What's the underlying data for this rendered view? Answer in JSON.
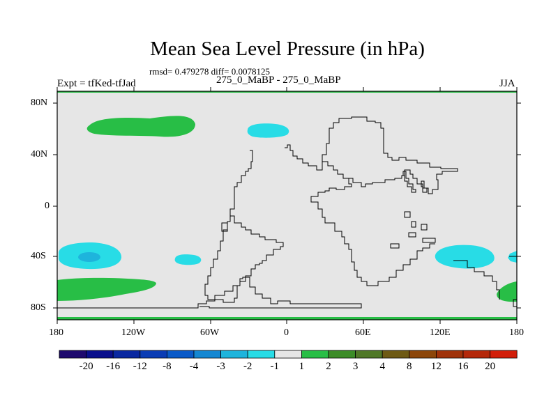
{
  "title": "Mean Sea Level Pressure (in hPa)",
  "stats": "rmsd= 0.479278 diff= 0.0078125",
  "left_label": "Expt = tfKed-tfJad",
  "center_label": "275_0_MaBP - 275_0_MaBP",
  "right_label": "JJA",
  "lat_ticks": [
    "80N",
    "40N",
    "0",
    "40S",
    "80S"
  ],
  "lon_ticks": [
    "180",
    "120W",
    "60W",
    "0",
    "60E",
    "120E",
    "180"
  ],
  "colorbar": {
    "labels": [
      "-20",
      "-16",
      "-12",
      "-8",
      "-4",
      "-3",
      "-2",
      "-1",
      "1",
      "2",
      "3",
      "4",
      "8",
      "12",
      "16",
      "20"
    ],
    "colors": [
      "#1e0a6e",
      "#0a0f8c",
      "#0a28a0",
      "#0a3cb4",
      "#0a5ac8",
      "#1487d2",
      "#1eb4dc",
      "#28dce6",
      "#e6e6e6",
      "#28be46",
      "#3c8c28",
      "#507828",
      "#6e5a14",
      "#8c460a",
      "#a0320a",
      "#b4280a",
      "#d21e0a"
    ]
  },
  "colors": {
    "background": "#e6e6e6",
    "positive": "#28be46",
    "negative_light": "#28dce6",
    "negative_mid": "#1eb4dc",
    "coastline": "#000000"
  }
}
